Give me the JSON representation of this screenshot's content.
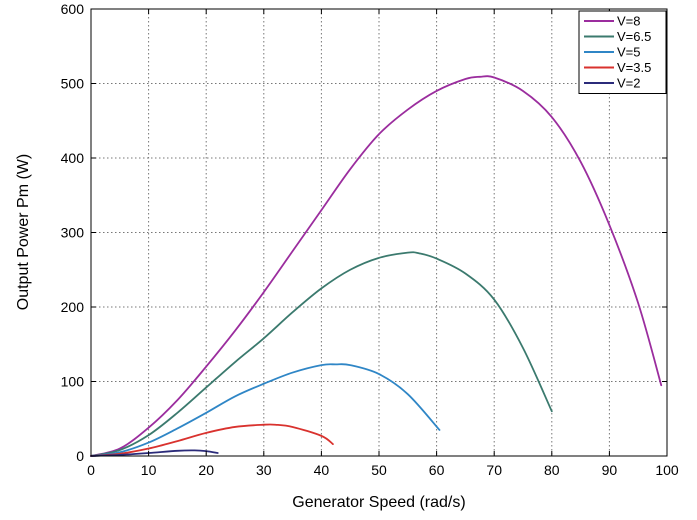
{
  "chart_data": {
    "type": "line",
    "xlabel": "Generator Speed (rad/s)",
    "ylabel": "Output Power Pm (W)",
    "xlim": [
      0,
      100
    ],
    "ylim": [
      0,
      600
    ],
    "x_ticks": [
      "0",
      "10",
      "20",
      "30",
      "40",
      "50",
      "60",
      "70",
      "80",
      "90",
      "100"
    ],
    "y_ticks": [
      "0",
      "100",
      "200",
      "300",
      "400",
      "500",
      "600"
    ],
    "grid": true,
    "legend_position": "top-right",
    "series": [
      {
        "name": "V=8",
        "color": "#9b2d9e",
        "x": [
          0,
          5,
          10,
          15,
          20,
          25,
          30,
          35,
          40,
          45,
          50,
          55,
          60,
          65,
          67.5,
          70,
          75,
          80,
          85,
          90,
          95,
          99
        ],
        "y": [
          0,
          10,
          38,
          75,
          120,
          168,
          220,
          275,
          330,
          385,
          432,
          465,
          490,
          506,
          509,
          508,
          490,
          455,
          395,
          310,
          205,
          95
        ]
      },
      {
        "name": "V=6.5",
        "color": "#3b7a6e",
        "x": [
          0,
          5,
          10,
          15,
          20,
          25,
          30,
          35,
          40,
          45,
          50,
          55,
          57,
          60,
          65,
          70,
          75,
          80
        ],
        "y": [
          0,
          8,
          28,
          58,
          92,
          126,
          158,
          193,
          225,
          250,
          266,
          273,
          272,
          265,
          245,
          210,
          145,
          60
        ]
      },
      {
        "name": "V=5",
        "color": "#2f86c6",
        "x": [
          0,
          5,
          10,
          15,
          20,
          25,
          30,
          35,
          40,
          42.5,
          45,
          50,
          55,
          60.5
        ],
        "y": [
          0,
          5,
          18,
          37,
          58,
          80,
          97,
          112,
          122,
          123,
          122,
          110,
          83,
          35
        ]
      },
      {
        "name": "V=3.5",
        "color": "#d9322e",
        "x": [
          0,
          5,
          10,
          15,
          20,
          25,
          30,
          32,
          35,
          40,
          42
        ],
        "y": [
          0,
          3,
          10,
          20,
          31,
          39,
          42,
          42,
          39,
          27,
          16
        ]
      },
      {
        "name": "V=2",
        "color": "#2b2b7a",
        "x": [
          0,
          5,
          10,
          15,
          18,
          20,
          22
        ],
        "y": [
          0,
          1.5,
          4,
          7,
          7.5,
          6.5,
          4
        ]
      }
    ]
  }
}
